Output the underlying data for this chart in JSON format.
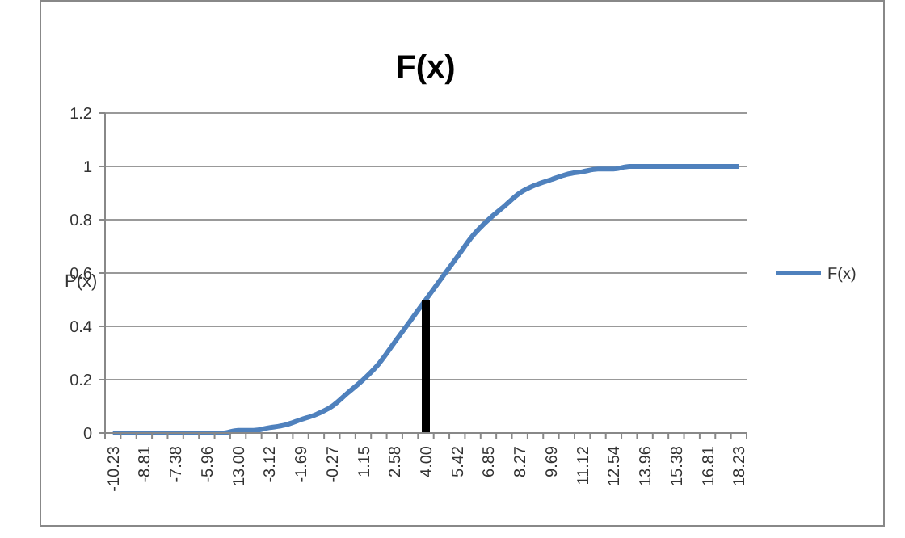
{
  "chart_data": {
    "type": "line",
    "title": "F(x)",
    "ylabel": "P(x)",
    "categories": [
      "-10.23",
      null,
      "-8.81",
      null,
      "-7.38",
      null,
      "-5.96",
      null,
      "13.00",
      null,
      "-3.12",
      null,
      "-1.69",
      null,
      "-0.27",
      null,
      "1.15",
      null,
      "2.58",
      null,
      "4.00",
      null,
      "5.42",
      null,
      "6.85",
      null,
      "8.27",
      null,
      "9.69",
      null,
      "11.12",
      null,
      "12.54",
      null,
      "13.96",
      null,
      "15.38",
      null,
      "16.81",
      null,
      "18.23"
    ],
    "series": [
      {
        "name": "F(x)",
        "color": "#4f81bd",
        "values": [
          0,
          0,
          0,
          0,
          0,
          0,
          0,
          0,
          0.01,
          0.01,
          0.02,
          0.03,
          0.05,
          0.07,
          0.1,
          0.15,
          0.2,
          0.26,
          0.34,
          0.42,
          0.5,
          0.58,
          0.66,
          0.74,
          0.8,
          0.85,
          0.9,
          0.93,
          0.95,
          0.97,
          0.98,
          0.99,
          0.99,
          1,
          1,
          1,
          1,
          1,
          1,
          1,
          1
        ]
      },
      {
        "type": "bar",
        "color": "#000000",
        "values": [
          null,
          null,
          null,
          null,
          null,
          null,
          null,
          null,
          null,
          null,
          null,
          null,
          null,
          null,
          null,
          null,
          null,
          null,
          null,
          null,
          0.5,
          null,
          null,
          null,
          null,
          null,
          null,
          null,
          null,
          null,
          null,
          null,
          null,
          null,
          null,
          null,
          null,
          null,
          null,
          null,
          null
        ]
      }
    ],
    "ylim": [
      0,
      1.2
    ],
    "yticks": [
      0,
      0.2,
      0.4,
      0.6,
      0.8,
      1,
      1.2
    ],
    "grid": "y",
    "legend": "right",
    "marker": "none",
    "line_style": "solid"
  }
}
